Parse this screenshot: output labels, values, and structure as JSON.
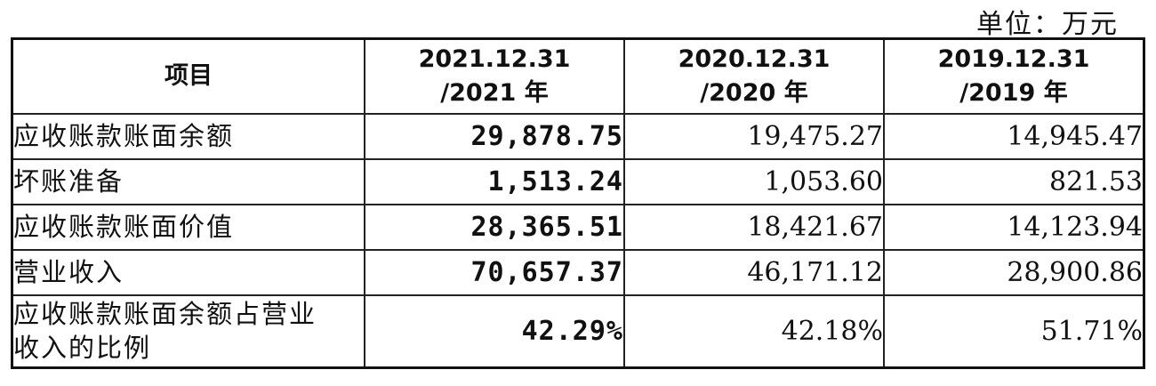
{
  "unit_label": "单位：万元",
  "table": {
    "headers": [
      {
        "line1": "项目",
        "line2": ""
      },
      {
        "line1": "2021.12.31",
        "line2": "/2021 年"
      },
      {
        "line1": "2020.12.31",
        "line2": "/2020 年"
      },
      {
        "line1": "2019.12.31",
        "line2": "/2019 年"
      }
    ],
    "rows": [
      {
        "label": "应收账款账面余额",
        "v2021": "29,878.75",
        "v2020": "19,475.27",
        "v2019": "14,945.47"
      },
      {
        "label": "坏账准备",
        "v2021": "1,513.24",
        "v2020": "1,053.60",
        "v2019": "821.53"
      },
      {
        "label": "应收账款账面价值",
        "v2021": "28,365.51",
        "v2020": "18,421.67",
        "v2019": "14,123.94"
      },
      {
        "label": "营业收入",
        "v2021": "70,657.37",
        "v2020": "46,171.12",
        "v2019": "28,900.86"
      },
      {
        "label_line1": "应收账款账面余额占营业",
        "label_line2": "收入的比例",
        "v2021": "42.29%",
        "v2020": "42.18%",
        "v2019": "51.71%"
      }
    ]
  }
}
